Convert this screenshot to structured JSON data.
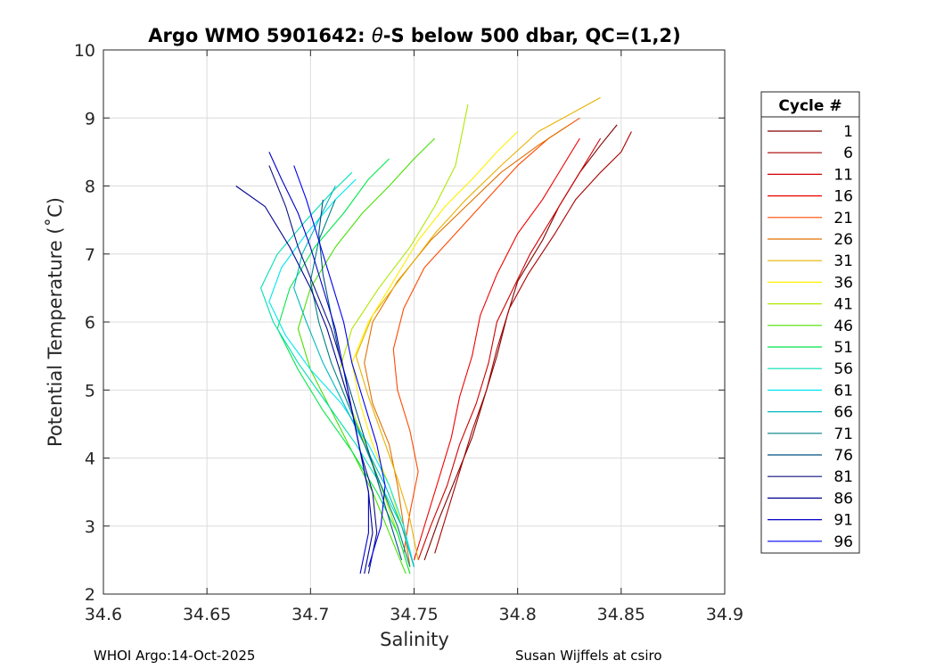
{
  "chart_data": {
    "type": "line",
    "title": "Argo WMO 5901642: θ-S below 500 dbar,  QC=(1,2)",
    "title_prefix": "Argo WMO 5901642: ",
    "title_theta": "θ",
    "title_suffix": "-S below 500 dbar,  QC=(1,2)",
    "xlabel": "Salinity",
    "ylabel": "Potential Temperature (˚C)",
    "xlim": [
      34.6,
      34.9
    ],
    "ylim": [
      2,
      10
    ],
    "xticks": [
      34.6,
      34.65,
      34.7,
      34.75,
      34.8,
      34.85,
      34.9
    ],
    "xtick_labels": [
      "34.6",
      "34.65",
      "34.7",
      "34.75",
      "34.8",
      "34.85",
      "34.9"
    ],
    "yticks": [
      2,
      3,
      4,
      5,
      6,
      7,
      8,
      9,
      10
    ],
    "ytick_labels": [
      "2",
      "3",
      "4",
      "5",
      "6",
      "7",
      "8",
      "9",
      "10"
    ],
    "grid": true,
    "legend_title": "Cycle #",
    "legend_placement": "right-outside",
    "series": [
      {
        "name": "1",
        "color": "#800000",
        "salinity": [
          34.755,
          34.762,
          34.77,
          34.778,
          34.784,
          34.79,
          34.795,
          34.8,
          34.812,
          34.82,
          34.83,
          34.84,
          34.848
        ],
        "theta": [
          2.5,
          3.1,
          3.7,
          4.3,
          4.9,
          5.5,
          6.1,
          6.6,
          7.2,
          7.7,
          8.2,
          8.6,
          8.9
        ]
      },
      {
        "name": "6",
        "color": "#a80000",
        "salinity": [
          34.76,
          34.766,
          34.772,
          34.778,
          34.785,
          34.79,
          34.796,
          34.805,
          34.818,
          34.828,
          34.84,
          34.85,
          34.855
        ],
        "theta": [
          2.6,
          3.2,
          3.8,
          4.4,
          5.0,
          5.6,
          6.2,
          6.7,
          7.3,
          7.8,
          8.2,
          8.5,
          8.8
        ]
      },
      {
        "name": "11",
        "color": "#d00000",
        "salinity": [
          34.752,
          34.758,
          34.766,
          34.772,
          34.78,
          34.786,
          34.79,
          34.798,
          34.806,
          34.818,
          34.826,
          34.834,
          34.84
        ],
        "theta": [
          2.5,
          3.0,
          3.6,
          4.2,
          4.8,
          5.4,
          6.0,
          6.5,
          7.0,
          7.6,
          8.0,
          8.4,
          8.7
        ]
      },
      {
        "name": "16",
        "color": "#f00000",
        "salinity": [
          34.75,
          34.756,
          34.762,
          34.768,
          34.772,
          34.778,
          34.782,
          34.79,
          34.8,
          34.812,
          34.822,
          34.83
        ],
        "theta": [
          2.5,
          3.1,
          3.7,
          4.3,
          4.9,
          5.5,
          6.1,
          6.7,
          7.3,
          7.8,
          8.3,
          8.7
        ]
      },
      {
        "name": "21",
        "color": "#ff4800",
        "salinity": [
          34.745,
          34.748,
          34.752,
          34.748,
          34.742,
          34.74,
          34.745,
          34.755,
          34.77,
          34.785,
          34.8,
          34.815,
          34.83
        ],
        "theta": [
          2.6,
          3.2,
          3.8,
          4.4,
          5.0,
          5.6,
          6.2,
          6.8,
          7.3,
          7.8,
          8.3,
          8.7,
          9.0
        ]
      },
      {
        "name": "26",
        "color": "#e07000",
        "salinity": [
          34.748,
          34.745,
          34.742,
          34.738,
          34.73,
          34.726,
          34.73,
          34.742,
          34.758,
          34.775,
          34.792,
          34.81,
          34.825
        ],
        "theta": [
          2.4,
          3.0,
          3.6,
          4.2,
          4.8,
          5.4,
          6.0,
          6.6,
          7.2,
          7.7,
          8.2,
          8.6,
          8.9
        ]
      },
      {
        "name": "31",
        "color": "#e8b000",
        "salinity": [
          34.752,
          34.748,
          34.742,
          34.735,
          34.728,
          34.722,
          34.73,
          34.745,
          34.76,
          34.775,
          34.792,
          34.81,
          34.84
        ],
        "theta": [
          2.5,
          3.1,
          3.7,
          4.3,
          4.9,
          5.5,
          6.1,
          6.7,
          7.3,
          7.8,
          8.3,
          8.8,
          9.3
        ]
      },
      {
        "name": "36",
        "color": "#ffef00",
        "salinity": [
          34.75,
          34.744,
          34.738,
          34.73,
          34.724,
          34.72,
          34.728,
          34.74,
          34.752,
          34.765,
          34.778,
          34.79,
          34.8
        ],
        "theta": [
          2.4,
          3.0,
          3.6,
          4.2,
          4.8,
          5.4,
          6.0,
          6.6,
          7.2,
          7.7,
          8.1,
          8.5,
          8.8
        ]
      },
      {
        "name": "41",
        "color": "#b0e800",
        "salinity": [
          34.748,
          34.742,
          34.735,
          34.728,
          34.72,
          34.714,
          34.72,
          34.733,
          34.748,
          34.76,
          34.77,
          34.776
        ],
        "theta": [
          2.3,
          2.9,
          3.5,
          4.1,
          4.7,
          5.3,
          5.9,
          6.5,
          7.1,
          7.7,
          8.3,
          9.2
        ]
      },
      {
        "name": "46",
        "color": "#48e000",
        "salinity": [
          34.746,
          34.738,
          34.73,
          34.72,
          34.71,
          34.7,
          34.694,
          34.7,
          34.712,
          34.725,
          34.738,
          34.75,
          34.76
        ],
        "theta": [
          2.3,
          2.9,
          3.5,
          4.1,
          4.7,
          5.3,
          5.9,
          6.5,
          7.1,
          7.6,
          8.0,
          8.4,
          8.7
        ]
      },
      {
        "name": "51",
        "color": "#00e848",
        "salinity": [
          34.748,
          34.742,
          34.732,
          34.72,
          34.706,
          34.694,
          34.684,
          34.69,
          34.702,
          34.716,
          34.728,
          34.738
        ],
        "theta": [
          2.3,
          2.9,
          3.5,
          4.1,
          4.7,
          5.3,
          5.9,
          6.5,
          7.1,
          7.6,
          8.1,
          8.4
        ]
      },
      {
        "name": "56",
        "color": "#00e0b0",
        "salinity": [
          34.75,
          34.744,
          34.734,
          34.722,
          34.708,
          34.694,
          34.682,
          34.676,
          34.684,
          34.698,
          34.71,
          34.72
        ],
        "theta": [
          2.4,
          3.0,
          3.6,
          4.2,
          4.8,
          5.4,
          6.0,
          6.5,
          7.0,
          7.5,
          7.9,
          8.2
        ]
      },
      {
        "name": "61",
        "color": "#00e8f0",
        "salinity": [
          34.75,
          34.745,
          34.738,
          34.728,
          34.715,
          34.7,
          34.688,
          34.68,
          34.686,
          34.698,
          34.712,
          34.722
        ],
        "theta": [
          2.4,
          3.0,
          3.6,
          4.2,
          4.8,
          5.3,
          5.8,
          6.3,
          6.8,
          7.3,
          7.8,
          8.1
        ]
      },
      {
        "name": "66",
        "color": "#00b8c0",
        "salinity": [
          34.75,
          34.744,
          34.736,
          34.726,
          34.716,
          34.706,
          34.698,
          34.692,
          34.696,
          34.704,
          34.712
        ],
        "theta": [
          2.4,
          3.0,
          3.6,
          4.2,
          4.8,
          5.4,
          6.0,
          6.5,
          7.0,
          7.5,
          8.0
        ]
      },
      {
        "name": "71",
        "color": "#008080",
        "salinity": [
          34.748,
          34.742,
          34.734,
          34.726,
          34.718,
          34.71,
          34.704,
          34.7,
          34.704,
          34.712
        ],
        "theta": [
          2.4,
          3.0,
          3.6,
          4.2,
          4.8,
          5.4,
          6.0,
          6.6,
          7.2,
          7.8
        ]
      },
      {
        "name": "76",
        "color": "#005080",
        "salinity": [
          34.744,
          34.738,
          34.732,
          34.726,
          34.72,
          34.714,
          34.71,
          34.706,
          34.704,
          34.706
        ],
        "theta": [
          2.5,
          3.1,
          3.7,
          4.3,
          4.9,
          5.5,
          6.1,
          6.7,
          7.3,
          7.8
        ]
      },
      {
        "name": "81",
        "color": "#101080",
        "salinity": [
          34.728,
          34.732,
          34.73,
          34.724,
          34.72,
          34.716,
          34.71,
          34.702,
          34.694,
          34.688,
          34.68
        ],
        "theta": [
          2.3,
          2.9,
          3.5,
          4.1,
          4.7,
          5.3,
          5.9,
          6.5,
          7.1,
          7.7,
          8.3
        ]
      },
      {
        "name": "86",
        "color": "#000090",
        "salinity": [
          34.726,
          34.73,
          34.728,
          34.724,
          34.72,
          34.714,
          34.708,
          34.7,
          34.69,
          34.678,
          34.664
        ],
        "theta": [
          2.3,
          2.9,
          3.5,
          4.1,
          4.7,
          5.3,
          5.9,
          6.5,
          7.1,
          7.7,
          8.0
        ]
      },
      {
        "name": "91",
        "color": "#0000c8",
        "salinity": [
          34.724,
          34.728,
          34.728,
          34.724,
          34.72,
          34.716,
          34.712,
          34.706,
          34.7,
          34.694,
          34.686,
          34.68
        ],
        "theta": [
          2.3,
          2.9,
          3.5,
          4.1,
          4.7,
          5.3,
          5.9,
          6.5,
          7.1,
          7.6,
          8.1,
          8.5
        ]
      },
      {
        "name": "96",
        "color": "#0000f0",
        "salinity": [
          34.728,
          34.734,
          34.736,
          34.732,
          34.726,
          34.72,
          34.716,
          34.71,
          34.704,
          34.698,
          34.692
        ],
        "theta": [
          2.4,
          3.0,
          3.6,
          4.2,
          4.8,
          5.4,
          6.0,
          6.6,
          7.2,
          7.8,
          8.3
        ]
      }
    ]
  },
  "footer": {
    "left": "WHOI Argo:14-Oct-2025",
    "right": "Susan Wijffels at csiro"
  }
}
